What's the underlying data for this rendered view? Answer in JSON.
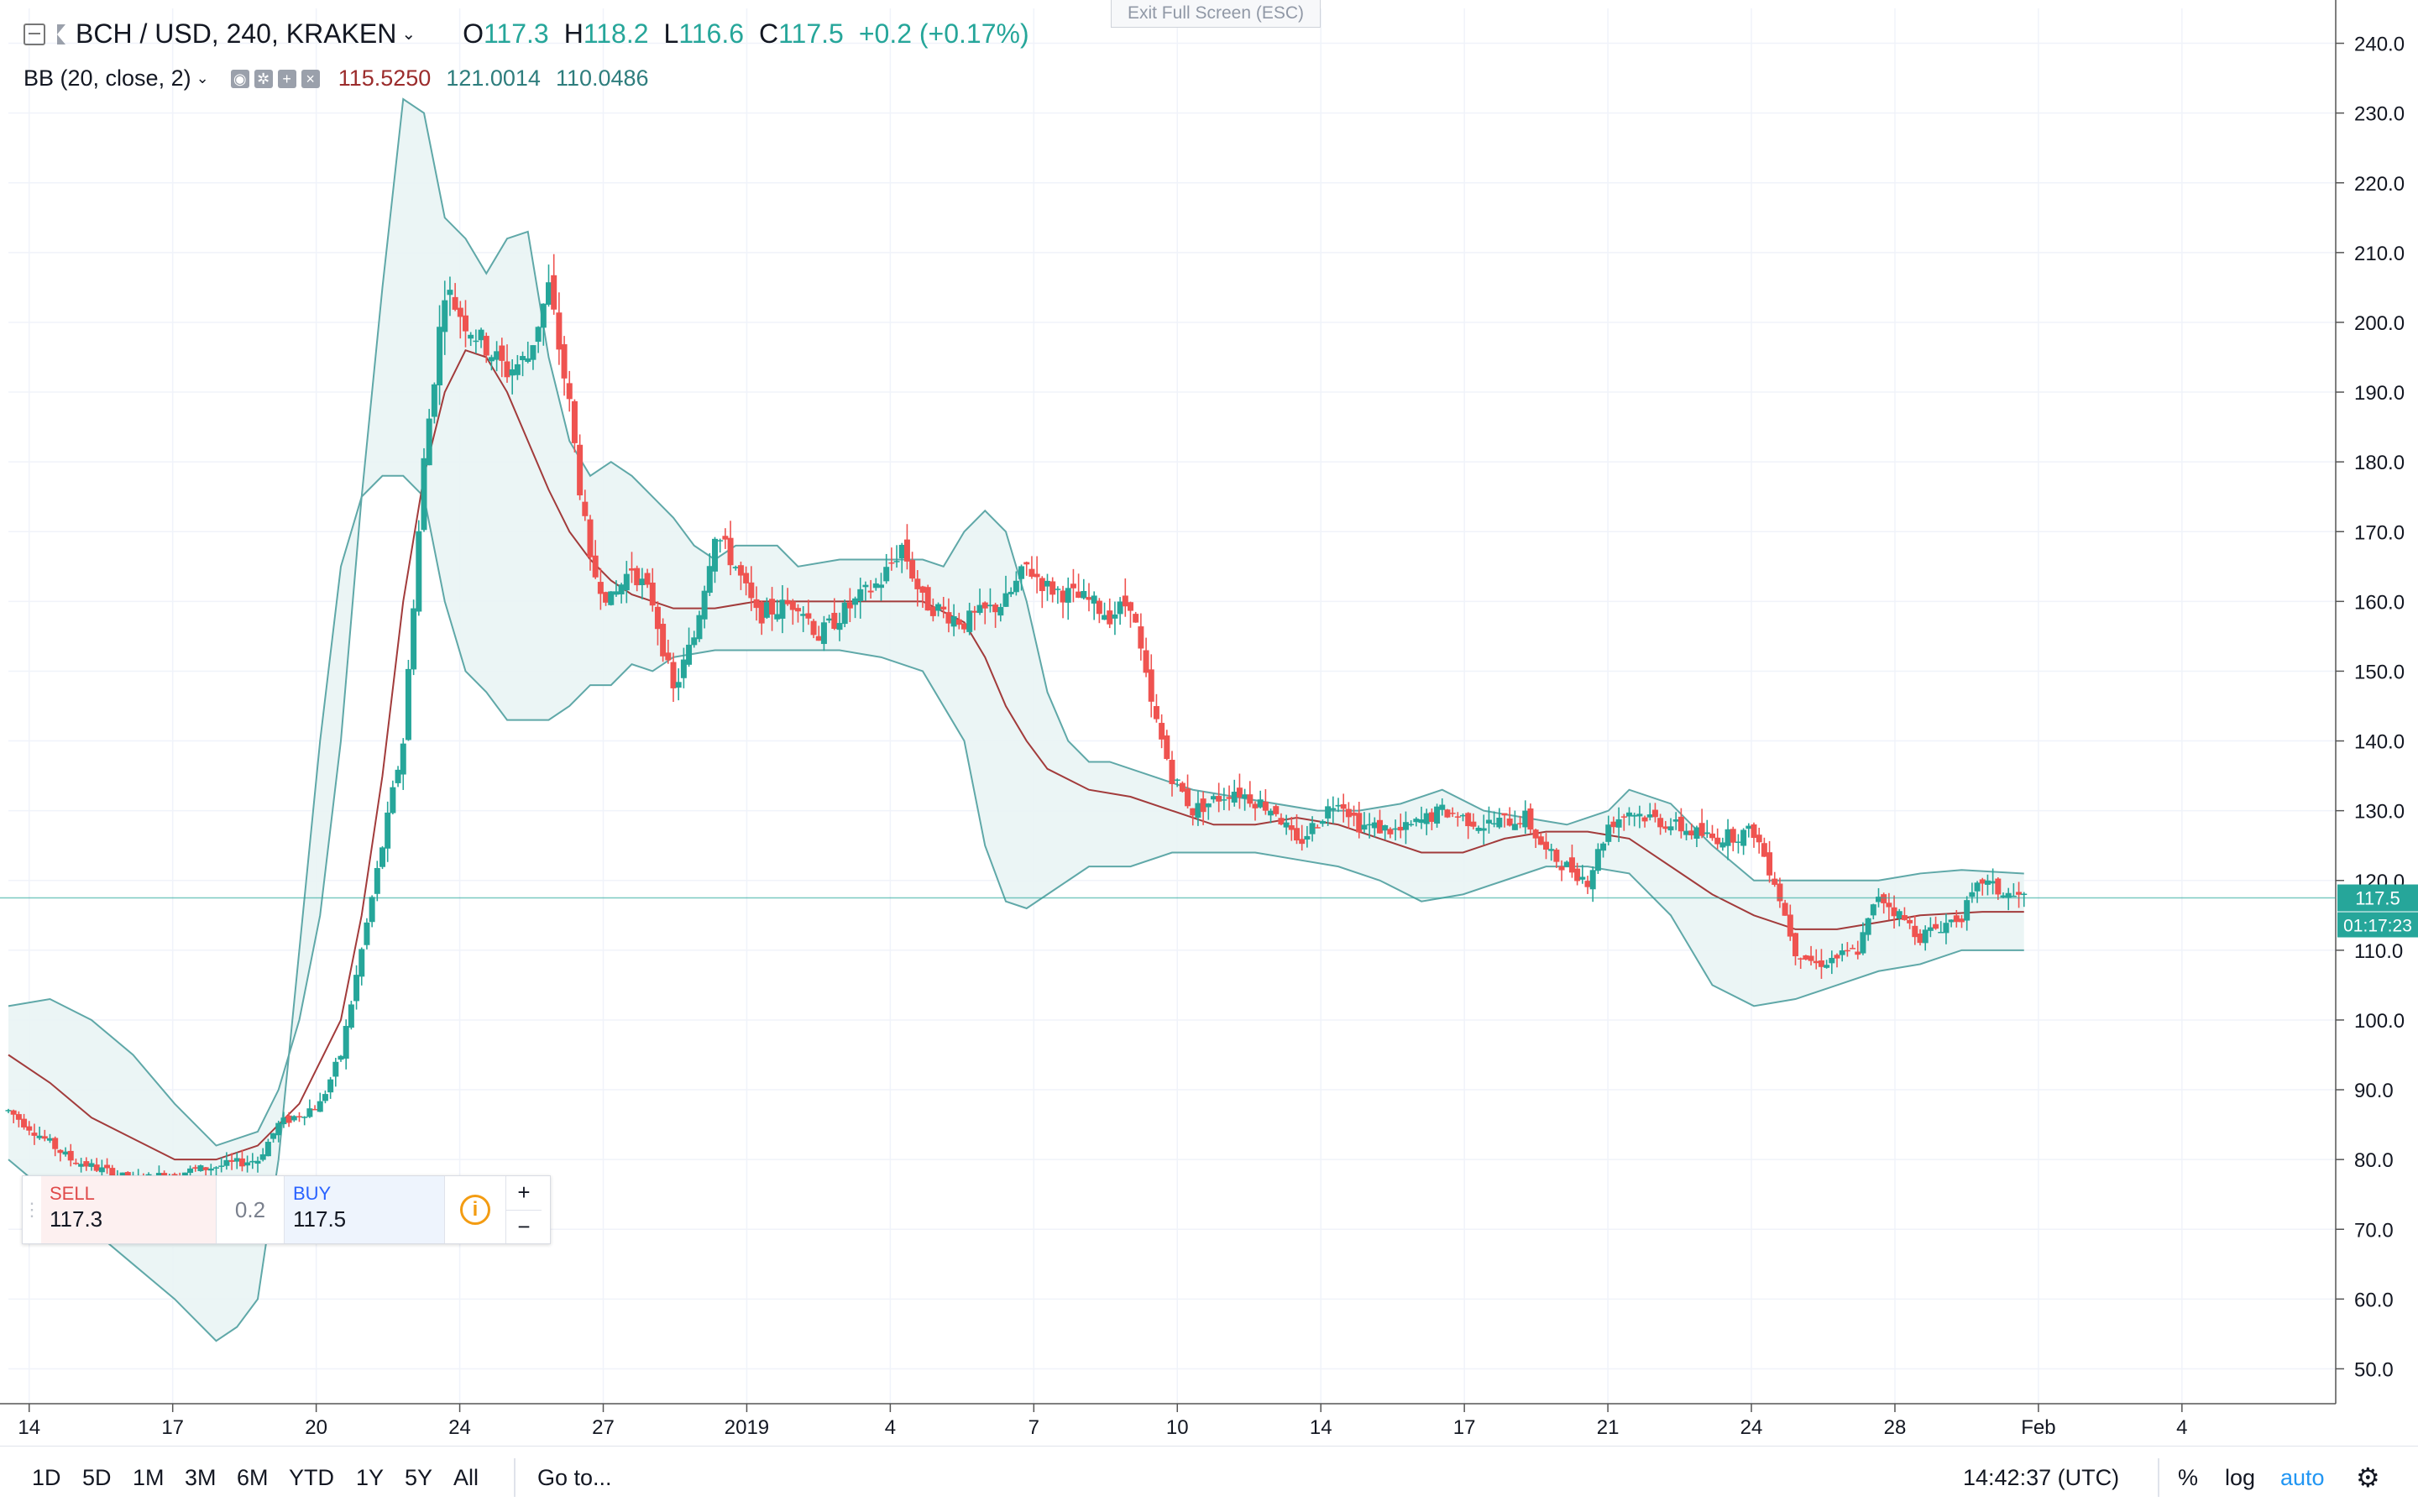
{
  "window": {
    "exit_fullscreen": "Exit Full Screen (ESC)"
  },
  "legend": {
    "symbol": "BCH / USD, 240, KRAKEN",
    "o_label": "O",
    "o_value": "117.3",
    "h_label": "H",
    "h_value": "118.2",
    "l_label": "L",
    "l_value": "116.6",
    "c_label": "C",
    "c_value": "117.5",
    "change": "+0.2 (+0.17%)",
    "indicator": "BB (20, close, 2)",
    "bb_basis": "115.5250",
    "bb_upper": "121.0014",
    "bb_lower": "110.0486"
  },
  "trade": {
    "sell_label": "SELL",
    "sell_price": "117.3",
    "spread": "0.2",
    "buy_label": "BUY",
    "buy_price": "117.5",
    "plus": "+",
    "minus": "−"
  },
  "price_axis": {
    "last_price": "117.5",
    "countdown": "01:17:23"
  },
  "bottom_bar": {
    "ranges": [
      "1D",
      "5D",
      "1M",
      "3M",
      "6M",
      "YTD",
      "1Y",
      "5Y",
      "All"
    ],
    "goto": "Go to...",
    "clock": "14:42:37 (UTC)",
    "percent": "%",
    "log": "log",
    "auto": "auto"
  },
  "colors": {
    "up": "#26a69a",
    "down": "#ef5350",
    "bb_band": "#5fa8a8",
    "bb_fill": "#e9f4f4",
    "bb_basis": "#a23b3b",
    "price_line": "#26a69a",
    "grid": "#f0f3fa",
    "auto_active": "#2196f3"
  },
  "chart_data": {
    "type": "candlestick",
    "title": "BCH / USD, 240, KRAKEN",
    "interval": "240",
    "ylim": [
      45,
      245
    ],
    "y_ticks": [
      "240.0",
      "230.0",
      "220.0",
      "210.0",
      "200.0",
      "190.0",
      "180.0",
      "170.0",
      "160.0",
      "150.0",
      "140.0",
      "130.0",
      "120.0",
      "110.0",
      "100.0",
      "90.0",
      "80.0",
      "70.0",
      "60.0",
      "50.0"
    ],
    "x_ticks": [
      "14",
      "17",
      "20",
      "24",
      "27",
      "2019",
      "4",
      "7",
      "10",
      "14",
      "17",
      "21",
      "24",
      "28",
      "Feb",
      "4"
    ],
    "grid": true,
    "last": {
      "open": 117.3,
      "high": 118.2,
      "low": 116.6,
      "close": 117.5,
      "change": 0.2,
      "change_pct": 0.17
    },
    "price_path": [
      [
        0,
        87
      ],
      [
        3,
        80
      ],
      [
        6,
        77
      ],
      [
        8,
        78
      ],
      [
        10,
        79
      ],
      [
        12,
        80
      ],
      [
        13,
        85
      ],
      [
        15,
        88
      ],
      [
        16,
        95
      ],
      [
        17,
        110
      ],
      [
        18,
        125
      ],
      [
        19,
        140
      ],
      [
        20,
        180
      ],
      [
        21,
        205
      ],
      [
        22,
        200
      ],
      [
        24,
        193
      ],
      [
        25,
        195
      ],
      [
        26,
        205
      ],
      [
        27,
        188
      ],
      [
        28,
        165
      ],
      [
        29,
        160
      ],
      [
        30,
        165
      ],
      [
        31,
        160
      ],
      [
        32,
        147
      ],
      [
        33,
        155
      ],
      [
        34,
        170
      ],
      [
        35,
        165
      ],
      [
        36,
        158
      ],
      [
        38,
        160
      ],
      [
        39,
        155
      ],
      [
        40,
        158
      ],
      [
        42,
        163
      ],
      [
        43,
        168
      ],
      [
        44,
        160
      ],
      [
        46,
        157
      ],
      [
        48,
        160
      ],
      [
        49,
        165
      ],
      [
        50,
        162
      ],
      [
        52,
        160
      ],
      [
        53,
        158
      ],
      [
        54,
        160
      ],
      [
        55,
        145
      ],
      [
        56,
        135
      ],
      [
        57,
        130
      ],
      [
        59,
        133
      ],
      [
        61,
        130
      ],
      [
        62,
        125
      ],
      [
        64,
        132
      ],
      [
        65,
        128
      ],
      [
        67,
        127
      ],
      [
        69,
        130
      ],
      [
        71,
        128
      ],
      [
        73,
        129
      ],
      [
        74,
        124
      ],
      [
        76,
        120
      ],
      [
        77,
        128
      ],
      [
        78,
        130
      ],
      [
        80,
        128
      ],
      [
        82,
        126
      ],
      [
        84,
        127
      ],
      [
        85,
        120
      ],
      [
        86,
        110
      ],
      [
        87,
        108
      ],
      [
        89,
        110
      ],
      [
        90,
        118
      ],
      [
        91,
        115
      ],
      [
        92,
        112
      ],
      [
        94,
        115
      ],
      [
        95,
        120
      ],
      [
        96,
        118
      ],
      [
        97,
        117.5
      ]
    ],
    "bb_upper_path": [
      [
        0,
        102
      ],
      [
        2,
        103
      ],
      [
        4,
        100
      ],
      [
        6,
        95
      ],
      [
        8,
        88
      ],
      [
        10,
        82
      ],
      [
        12,
        84
      ],
      [
        13,
        90
      ],
      [
        14,
        100
      ],
      [
        15,
        115
      ],
      [
        16,
        140
      ],
      [
        17,
        175
      ],
      [
        18,
        205
      ],
      [
        19,
        232
      ],
      [
        20,
        230
      ],
      [
        21,
        215
      ],
      [
        22,
        212
      ],
      [
        23,
        207
      ],
      [
        24,
        212
      ],
      [
        25,
        213
      ],
      [
        26,
        195
      ],
      [
        27,
        183
      ],
      [
        28,
        178
      ],
      [
        29,
        180
      ],
      [
        30,
        178
      ],
      [
        31,
        175
      ],
      [
        32,
        172
      ],
      [
        33,
        168
      ],
      [
        34,
        166
      ],
      [
        35,
        168
      ],
      [
        37,
        168
      ],
      [
        38,
        165
      ],
      [
        40,
        166
      ],
      [
        42,
        166
      ],
      [
        44,
        166
      ],
      [
        45,
        165
      ],
      [
        46,
        170
      ],
      [
        47,
        173
      ],
      [
        48,
        170
      ],
      [
        49,
        160
      ],
      [
        50,
        147
      ],
      [
        51,
        140
      ],
      [
        52,
        137
      ],
      [
        53,
        137
      ],
      [
        55,
        135
      ],
      [
        57,
        133
      ],
      [
        59,
        132
      ],
      [
        61,
        131
      ],
      [
        63,
        130
      ],
      [
        65,
        130
      ],
      [
        67,
        131
      ],
      [
        69,
        133
      ],
      [
        71,
        130
      ],
      [
        73,
        129
      ],
      [
        75,
        128
      ],
      [
        77,
        130
      ],
      [
        78,
        133
      ],
      [
        80,
        131
      ],
      [
        82,
        125
      ],
      [
        84,
        120
      ],
      [
        86,
        120
      ],
      [
        88,
        120
      ],
      [
        90,
        120
      ],
      [
        92,
        121
      ],
      [
        94,
        121.5
      ],
      [
        97,
        121
      ]
    ],
    "bb_basis_path": [
      [
        0,
        95
      ],
      [
        2,
        91
      ],
      [
        4,
        86
      ],
      [
        6,
        83
      ],
      [
        8,
        80
      ],
      [
        10,
        80
      ],
      [
        12,
        82
      ],
      [
        14,
        88
      ],
      [
        16,
        100
      ],
      [
        17,
        115
      ],
      [
        18,
        135
      ],
      [
        19,
        160
      ],
      [
        20,
        178
      ],
      [
        21,
        190
      ],
      [
        22,
        196
      ],
      [
        23,
        195
      ],
      [
        24,
        190
      ],
      [
        25,
        183
      ],
      [
        26,
        176
      ],
      [
        27,
        170
      ],
      [
        28,
        166
      ],
      [
        29,
        163
      ],
      [
        30,
        161
      ],
      [
        32,
        159
      ],
      [
        34,
        159
      ],
      [
        36,
        160
      ],
      [
        38,
        160
      ],
      [
        40,
        160
      ],
      [
        42,
        160
      ],
      [
        44,
        160
      ],
      [
        46,
        157
      ],
      [
        47,
        152
      ],
      [
        48,
        145
      ],
      [
        49,
        140
      ],
      [
        50,
        136
      ],
      [
        52,
        133
      ],
      [
        54,
        132
      ],
      [
        56,
        130
      ],
      [
        58,
        128
      ],
      [
        60,
        128
      ],
      [
        62,
        129
      ],
      [
        64,
        128
      ],
      [
        66,
        126
      ],
      [
        68,
        124
      ],
      [
        70,
        124
      ],
      [
        72,
        126
      ],
      [
        74,
        127
      ],
      [
        76,
        127
      ],
      [
        78,
        126
      ],
      [
        80,
        122
      ],
      [
        82,
        118
      ],
      [
        84,
        115
      ],
      [
        86,
        113
      ],
      [
        88,
        113
      ],
      [
        90,
        114
      ],
      [
        92,
        115
      ],
      [
        95,
        115.5
      ],
      [
        97,
        115.5
      ]
    ],
    "bb_lower_path": [
      [
        0,
        80
      ],
      [
        2,
        75
      ],
      [
        4,
        70
      ],
      [
        6,
        65
      ],
      [
        8,
        60
      ],
      [
        10,
        54
      ],
      [
        11,
        56
      ],
      [
        12,
        60
      ],
      [
        13,
        80
      ],
      [
        14,
        110
      ],
      [
        15,
        140
      ],
      [
        16,
        165
      ],
      [
        17,
        175
      ],
      [
        18,
        178
      ],
      [
        19,
        178
      ],
      [
        20,
        175
      ],
      [
        21,
        160
      ],
      [
        22,
        150
      ],
      [
        23,
        147
      ],
      [
        24,
        143
      ],
      [
        25,
        143
      ],
      [
        26,
        143
      ],
      [
        27,
        145
      ],
      [
        28,
        148
      ],
      [
        29,
        148
      ],
      [
        30,
        151
      ],
      [
        31,
        150
      ],
      [
        32,
        152
      ],
      [
        34,
        153
      ],
      [
        36,
        153
      ],
      [
        38,
        153
      ],
      [
        40,
        153
      ],
      [
        42,
        152
      ],
      [
        44,
        150
      ],
      [
        46,
        140
      ],
      [
        47,
        125
      ],
      [
        48,
        117
      ],
      [
        49,
        116
      ],
      [
        50,
        118
      ],
      [
        52,
        122
      ],
      [
        54,
        122
      ],
      [
        56,
        124
      ],
      [
        58,
        124
      ],
      [
        60,
        124
      ],
      [
        62,
        123
      ],
      [
        64,
        122
      ],
      [
        66,
        120
      ],
      [
        68,
        117
      ],
      [
        70,
        118
      ],
      [
        72,
        120
      ],
      [
        74,
        122
      ],
      [
        76,
        122
      ],
      [
        78,
        121
      ],
      [
        80,
        115
      ],
      [
        82,
        105
      ],
      [
        84,
        102
      ],
      [
        86,
        103
      ],
      [
        88,
        105
      ],
      [
        90,
        107
      ],
      [
        92,
        108
      ],
      [
        94,
        110
      ],
      [
        97,
        110
      ]
    ]
  }
}
